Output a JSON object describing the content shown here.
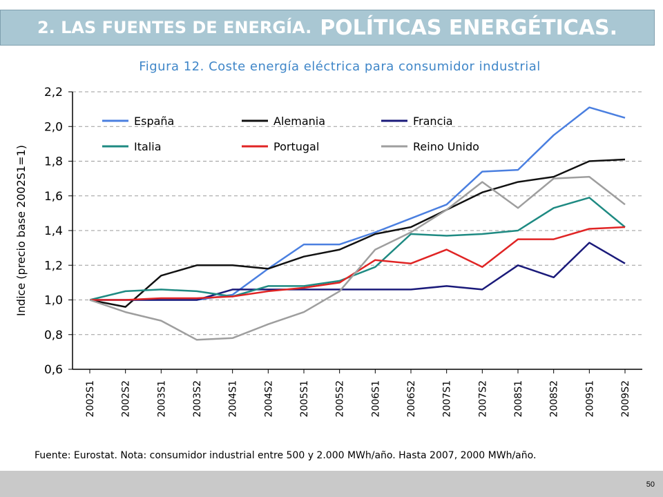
{
  "slide": {
    "title_part1": "2. LAS FUENTES DE ENERGÍA.",
    "title_part2": "POLÍTICAS ENERGÉTICAS.",
    "page_number": "50"
  },
  "chart_data": {
    "type": "line",
    "title": "Figura 12. Coste energía eléctrica para consumidor industrial",
    "ylabel": "Indice (precio base 2002S1=1)",
    "xlabel": "",
    "ylim": [
      0.6,
      2.2
    ],
    "yticks": [
      "0,6",
      "0,8",
      "1,0",
      "1,2",
      "1,4",
      "1,6",
      "1,8",
      "2,0",
      "2,2"
    ],
    "grid": "horizontal dashed",
    "legend_position": "top-left, inside plot (two rows)",
    "categories": [
      "2002S1",
      "2002S2",
      "2003S1",
      "2003S2",
      "2004S1",
      "2004S2",
      "2005S1",
      "2005S2",
      "2006S1",
      "2006S2",
      "2007S1",
      "2007S2",
      "2008S1",
      "2008S2",
      "2009S1",
      "2009S2"
    ],
    "series": [
      {
        "name": "España",
        "color": "#4a7fe0",
        "values": [
          1.0,
          1.0,
          1.0,
          1.0,
          1.03,
          1.18,
          1.32,
          1.32,
          1.39,
          1.47,
          1.55,
          1.74,
          1.75,
          1.95,
          2.11,
          2.05
        ]
      },
      {
        "name": "Alemania",
        "color": "#111111",
        "values": [
          1.0,
          0.96,
          1.14,
          1.2,
          1.2,
          1.18,
          1.25,
          1.29,
          1.38,
          1.42,
          1.52,
          1.62,
          1.68,
          1.71,
          1.8,
          1.81
        ]
      },
      {
        "name": "Francia",
        "color": "#1a1a7a",
        "values": [
          1.0,
          1.0,
          1.0,
          1.0,
          1.06,
          1.06,
          1.06,
          1.06,
          1.06,
          1.06,
          1.08,
          1.06,
          1.2,
          1.13,
          1.33,
          1.21
        ]
      },
      {
        "name": "Italia",
        "color": "#1e8a82",
        "values": [
          1.0,
          1.05,
          1.06,
          1.05,
          1.02,
          1.08,
          1.08,
          1.11,
          1.19,
          1.38,
          1.37,
          1.38,
          1.4,
          1.53,
          1.59,
          1.42
        ]
      },
      {
        "name": "Portugal",
        "color": "#e02424",
        "values": [
          1.0,
          1.0,
          1.01,
          1.01,
          1.02,
          1.05,
          1.07,
          1.1,
          1.23,
          1.21,
          1.29,
          1.19,
          1.35,
          1.35,
          1.41,
          1.42
        ]
      },
      {
        "name": "Reino Unido",
        "color": "#9e9e9e",
        "values": [
          1.0,
          0.93,
          0.88,
          0.77,
          0.78,
          0.86,
          0.93,
          1.05,
          1.29,
          1.39,
          1.52,
          1.68,
          1.53,
          1.7,
          1.71,
          1.55
        ]
      }
    ],
    "source_note": "Fuente: Eurostat. Nota: consumidor industrial entre 500 y 2.000 MWh/año. Hasta 2007, 2000 MWh/año."
  }
}
